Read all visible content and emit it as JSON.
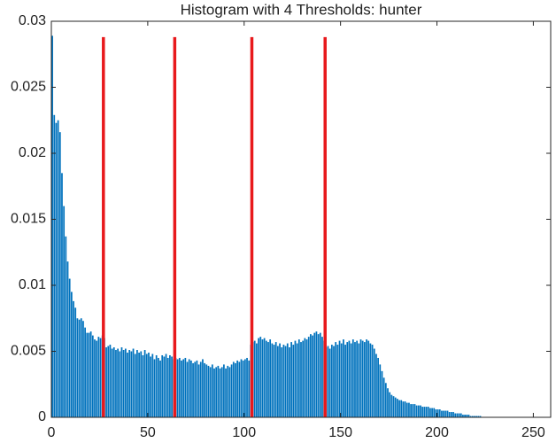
{
  "chart_data": {
    "type": "bar",
    "title": "Histogram with 4 Thresholds: hunter",
    "x": [
      0,
      1,
      2,
      3,
      4,
      5,
      6,
      7,
      8,
      9,
      10,
      11,
      12,
      13,
      14,
      15,
      16,
      17,
      18,
      19,
      20,
      21,
      22,
      23,
      24,
      25,
      26,
      27,
      28,
      29,
      30,
      31,
      32,
      33,
      34,
      35,
      36,
      37,
      38,
      39,
      40,
      41,
      42,
      43,
      44,
      45,
      46,
      47,
      48,
      49,
      50,
      51,
      52,
      53,
      54,
      55,
      56,
      57,
      58,
      59,
      60,
      61,
      62,
      63,
      64,
      65,
      66,
      67,
      68,
      69,
      70,
      71,
      72,
      73,
      74,
      75,
      76,
      77,
      78,
      79,
      80,
      81,
      82,
      83,
      84,
      85,
      86,
      87,
      88,
      89,
      90,
      91,
      92,
      93,
      94,
      95,
      96,
      97,
      98,
      99,
      100,
      101,
      102,
      103,
      104,
      105,
      106,
      107,
      108,
      109,
      110,
      111,
      112,
      113,
      114,
      115,
      116,
      117,
      118,
      119,
      120,
      121,
      122,
      123,
      124,
      125,
      126,
      127,
      128,
      129,
      130,
      131,
      132,
      133,
      134,
      135,
      136,
      137,
      138,
      139,
      140,
      141,
      142,
      143,
      144,
      145,
      146,
      147,
      148,
      149,
      150,
      151,
      152,
      153,
      154,
      155,
      156,
      157,
      158,
      159,
      160,
      161,
      162,
      163,
      164,
      165,
      166,
      167,
      168,
      169,
      170,
      171,
      172,
      173,
      174,
      175,
      176,
      177,
      178,
      179,
      180,
      181,
      182,
      183,
      184,
      185,
      186,
      187,
      188,
      189,
      190,
      191,
      192,
      193,
      194,
      195,
      196,
      197,
      198,
      199,
      200,
      201,
      202,
      203,
      204,
      205,
      206,
      207,
      208,
      209,
      210,
      211,
      212,
      213,
      214,
      215,
      216,
      217,
      218,
      219,
      220,
      221,
      222,
      223,
      224,
      225,
      226,
      227,
      228,
      229,
      230,
      231,
      232,
      233,
      234,
      235,
      236,
      237,
      238,
      239,
      240,
      241,
      242,
      243,
      244,
      245,
      246,
      247,
      248,
      249,
      250,
      251,
      252,
      253,
      254,
      255
    ],
    "values": [
      0.0289,
      0.0229,
      0.0223,
      0.0225,
      0.0216,
      0.0185,
      0.016,
      0.0137,
      0.0118,
      0.0105,
      0.0095,
      0.0088,
      0.0083,
      0.0075,
      0.0074,
      0.0075,
      0.0073,
      0.0068,
      0.0064,
      0.0064,
      0.0065,
      0.0062,
      0.0059,
      0.0058,
      0.0061,
      0.006,
      0.0062,
      0.006,
      0.0053,
      0.0054,
      0.0055,
      0.0052,
      0.0053,
      0.0051,
      0.0052,
      0.005,
      0.0053,
      0.0051,
      0.0052,
      0.0049,
      0.0051,
      0.005,
      0.0052,
      0.0048,
      0.0051,
      0.0049,
      0.005,
      0.0047,
      0.0051,
      0.0048,
      0.0049,
      0.0046,
      0.0048,
      0.0044,
      0.0047,
      0.0045,
      0.0043,
      0.0047,
      0.0046,
      0.0048,
      0.0045,
      0.0047,
      0.0046,
      0.0044,
      0.0045,
      0.0044,
      0.0045,
      0.0043,
      0.0044,
      0.0045,
      0.0042,
      0.0044,
      0.0043,
      0.0041,
      0.0042,
      0.0043,
      0.004,
      0.0042,
      0.0044,
      0.0041,
      0.004,
      0.0039,
      0.0038,
      0.004,
      0.0037,
      0.0038,
      0.0039,
      0.0037,
      0.0038,
      0.004,
      0.0037,
      0.0039,
      0.0038,
      0.004,
      0.0042,
      0.0041,
      0.0043,
      0.0042,
      0.0044,
      0.0043,
      0.0044,
      0.0045,
      0.0043,
      0.0055,
      0.0057,
      0.0058,
      0.0056,
      0.006,
      0.0061,
      0.0059,
      0.006,
      0.0058,
      0.0057,
      0.0059,
      0.0056,
      0.0055,
      0.0057,
      0.0054,
      0.0056,
      0.0053,
      0.0055,
      0.0054,
      0.0056,
      0.0053,
      0.0057,
      0.0055,
      0.0058,
      0.0056,
      0.0059,
      0.0057,
      0.0058,
      0.006,
      0.0059,
      0.0061,
      0.0063,
      0.0062,
      0.0064,
      0.0065,
      0.0063,
      0.0064,
      0.0061,
      0.0058,
      0.0053,
      0.0054,
      0.0052,
      0.0055,
      0.0054,
      0.0057,
      0.0055,
      0.0058,
      0.0056,
      0.0059,
      0.0055,
      0.0057,
      0.0058,
      0.0056,
      0.0059,
      0.0057,
      0.0058,
      0.0056,
      0.0059,
      0.0058,
      0.0057,
      0.0059,
      0.0058,
      0.0056,
      0.0055,
      0.0052,
      0.0048,
      0.0045,
      0.004,
      0.0035,
      0.003,
      0.0026,
      0.0022,
      0.0019,
      0.0017,
      0.0016,
      0.0015,
      0.0014,
      0.0013,
      0.0013,
      0.0012,
      0.0012,
      0.0011,
      0.0011,
      0.001,
      0.001,
      0.001,
      0.0009,
      0.0009,
      0.0009,
      0.0008,
      0.0008,
      0.0008,
      0.0008,
      0.0007,
      0.0007,
      0.0007,
      0.0006,
      0.0006,
      0.0006,
      0.0005,
      0.0005,
      0.0005,
      0.0005,
      0.0004,
      0.0004,
      0.0004,
      0.0003,
      0.0003,
      0.0003,
      0.0003,
      0.0002,
      0.0002,
      0.0002,
      0.0002,
      0.0001,
      0.0001,
      0.0001,
      0.0001,
      0.0001,
      0.0001,
      0,
      0,
      0,
      0,
      0,
      0,
      0,
      0,
      0,
      0,
      0,
      0,
      0,
      0,
      0,
      0,
      0,
      0,
      0,
      0,
      0,
      0,
      0,
      0,
      0,
      0,
      0,
      0,
      0,
      0,
      0,
      0,
      0
    ],
    "color": "#0072bd",
    "thresholds": [
      27,
      64,
      104,
      142
    ],
    "threshold_height": 0.0288,
    "threshold_color": "#e8191c",
    "xlim": [
      0,
      259
    ],
    "xticks": [
      0,
      50,
      100,
      150,
      200,
      250
    ],
    "ylim": [
      0,
      0.03
    ],
    "yticks": [
      0,
      0.005,
      0.01,
      0.015,
      0.02,
      0.025,
      0.03
    ]
  }
}
